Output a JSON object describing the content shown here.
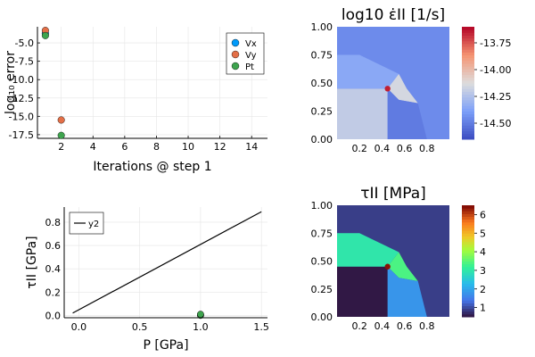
{
  "chart_data": [
    {
      "type": "scatter",
      "xlabel": "Iterations @ step 1",
      "ylabel": "log₁₀ error",
      "xlim": [
        0.5,
        15
      ],
      "ylim": [
        -18,
        -2.8
      ],
      "xticks": [
        "2",
        "4",
        "6",
        "8",
        "10",
        "12",
        "14"
      ],
      "yticks": [
        "-5.0",
        "-7.5",
        "-10.0",
        "-12.5",
        "-15.0",
        "-17.5"
      ],
      "grid": true,
      "legend_position": "top-right",
      "series": [
        {
          "name": "Vx",
          "color": "#009AFA",
          "x": [
            1
          ],
          "y": [
            -3.7
          ]
        },
        {
          "name": "Vy",
          "color": "#E36F47",
          "x": [
            1,
            2
          ],
          "y": [
            -3.3,
            -15.5
          ]
        },
        {
          "name": "Pt",
          "color": "#3EA44E",
          "x": [
            1,
            2
          ],
          "y": [
            -4.0,
            -17.6
          ]
        }
      ]
    },
    {
      "type": "heatmap",
      "title": "log10 ε̇II [1/s]",
      "xlim": [
        0,
        1
      ],
      "ylim": [
        0,
        1
      ],
      "xticks": [
        "0.2",
        "0.4",
        "0.6",
        "0.8"
      ],
      "yticks": [
        "0.00",
        "0.25",
        "0.50",
        "0.75",
        "1.00"
      ],
      "colormap": "coolwarm",
      "colorbar_ticks": [
        "-13.75",
        "-14.00",
        "-14.25",
        "-14.50"
      ],
      "clim": [
        -14.65,
        -13.6
      ],
      "regions": {
        "background": -14.45,
        "upper_left_block": -14.35,
        "lower_left_block": -14.2,
        "stress_band": -14.15,
        "lower_right": -14.5,
        "hotspot": -13.65
      }
    },
    {
      "type": "line",
      "xlabel": "P [GPa]",
      "ylabel": "τII [GPa]",
      "xlim": [
        -0.12,
        1.55
      ],
      "ylim": [
        -0.02,
        0.93
      ],
      "xticks": [
        "0.0",
        "0.5",
        "1.0",
        "1.5"
      ],
      "yticks": [
        "0.0",
        "0.2",
        "0.4",
        "0.6",
        "0.8"
      ],
      "grid": true,
      "legend_position": "top-left",
      "series": [
        {
          "name": "y2",
          "color": "#000000",
          "x": [
            -0.05,
            1.5
          ],
          "y": [
            0.02,
            0.89
          ]
        }
      ],
      "points": {
        "color": "#3EA44E",
        "x": [
          1.0,
          1.0,
          1.0
        ],
        "y": [
          0.0,
          0.005,
          0.01
        ]
      }
    },
    {
      "type": "heatmap",
      "title": "τII [MPa]",
      "xlim": [
        0,
        1
      ],
      "ylim": [
        0,
        1
      ],
      "xticks": [
        "0.2",
        "0.4",
        "0.6",
        "0.8"
      ],
      "yticks": [
        "0.00",
        "0.25",
        "0.50",
        "0.75",
        "1.00"
      ],
      "colormap": "turbo",
      "colorbar_ticks": [
        "1",
        "2",
        "3",
        "4",
        "5",
        "6"
      ],
      "clim": [
        0.5,
        6.5
      ],
      "regions": {
        "background": 0.9,
        "upper_left_block": 3.0,
        "lower_left_block": 0.55,
        "stress_band": 3.4,
        "lower_right": 1.8,
        "hotspot": 6.4
      }
    }
  ]
}
